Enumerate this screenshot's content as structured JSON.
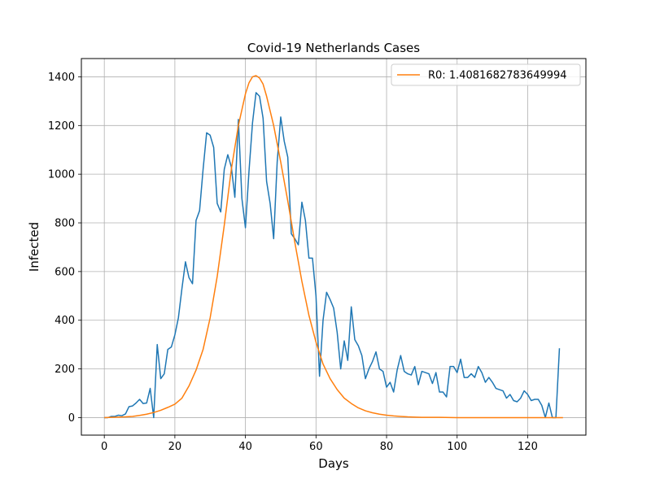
{
  "chart_data": {
    "type": "line",
    "title": "Covid-19 Netherlands Cases",
    "xlabel": "Days",
    "ylabel": "Infected",
    "xlim": [
      -6.5,
      136.5
    ],
    "ylim": [
      -72,
      1475
    ],
    "xticks": [
      0,
      20,
      40,
      60,
      80,
      100,
      120
    ],
    "yticks": [
      0,
      200,
      400,
      600,
      800,
      1000,
      1200,
      1400
    ],
    "grid": true,
    "legend_position": "top-right",
    "series": [
      {
        "name": "",
        "color": "#1f77b4",
        "x": [
          0,
          1,
          2,
          3,
          4,
          5,
          6,
          7,
          8,
          9,
          10,
          11,
          12,
          13,
          14,
          15,
          16,
          17,
          18,
          19,
          20,
          21,
          22,
          23,
          24,
          25,
          26,
          27,
          28,
          29,
          30,
          31,
          32,
          33,
          34,
          35,
          36,
          37,
          38,
          39,
          40,
          41,
          42,
          43,
          44,
          45,
          46,
          47,
          48,
          49,
          50,
          51,
          52,
          53,
          54,
          55,
          56,
          57,
          58,
          59,
          60,
          61,
          62,
          63,
          64,
          65,
          66,
          67,
          68,
          69,
          70,
          71,
          72,
          73,
          74,
          75,
          76,
          77,
          78,
          79,
          80,
          81,
          82,
          83,
          84,
          85,
          86,
          87,
          88,
          89,
          90,
          91,
          92,
          93,
          94,
          95,
          96,
          97,
          98,
          99,
          100,
          101,
          102,
          103,
          104,
          105,
          106,
          107,
          108,
          109,
          110,
          111,
          112,
          113,
          114,
          115,
          116,
          117,
          118,
          119,
          120,
          121,
          122,
          123,
          124,
          125,
          126,
          127,
          128,
          129
        ],
        "y": [
          0,
          0,
          5,
          5,
          10,
          8,
          15,
          45,
          48,
          60,
          75,
          58,
          60,
          120,
          0,
          300,
          160,
          180,
          280,
          290,
          340,
          410,
          530,
          640,
          575,
          550,
          810,
          850,
          1020,
          1170,
          1160,
          1110,
          880,
          845,
          1020,
          1080,
          1030,
          905,
          1225,
          900,
          780,
          1010,
          1210,
          1335,
          1320,
          1230,
          970,
          880,
          735,
          1050,
          1235,
          1135,
          1070,
          755,
          735,
          710,
          885,
          810,
          655,
          655,
          500,
          170,
          400,
          515,
          485,
          450,
          350,
          200,
          315,
          235,
          455,
          320,
          295,
          255,
          160,
          200,
          230,
          270,
          200,
          190,
          125,
          145,
          105,
          195,
          255,
          190,
          180,
          175,
          210,
          135,
          190,
          185,
          180,
          140,
          185,
          105,
          105,
          85,
          210,
          210,
          185,
          240,
          165,
          165,
          180,
          165,
          210,
          185,
          145,
          165,
          145,
          120,
          115,
          110,
          80,
          95,
          70,
          65,
          80,
          110,
          95,
          70,
          75,
          75,
          50,
          0,
          60,
          0,
          0,
          285
        ]
      },
      {
        "name": "R0: 1.4081682783649994",
        "color": "#ff7f0e",
        "x": [
          0,
          2,
          4,
          6,
          8,
          10,
          12,
          14,
          16,
          18,
          20,
          22,
          24,
          26,
          28,
          30,
          32,
          34,
          36,
          38,
          40,
          41,
          42,
          43,
          44,
          45,
          46,
          48,
          50,
          52,
          54,
          56,
          58,
          60,
          62,
          64,
          66,
          68,
          70,
          72,
          74,
          76,
          78,
          80,
          82,
          84,
          86,
          88,
          90,
          95,
          100,
          105,
          110,
          115,
          120,
          125,
          130
        ],
        "y": [
          0,
          1,
          2,
          3,
          5,
          9,
          14,
          21,
          30,
          42,
          55,
          80,
          130,
          195,
          280,
          410,
          580,
          790,
          1020,
          1200,
          1330,
          1375,
          1400,
          1405,
          1395,
          1370,
          1320,
          1200,
          1050,
          890,
          720,
          560,
          420,
          310,
          220,
          160,
          115,
          80,
          58,
          40,
          28,
          20,
          14,
          10,
          7,
          5,
          3,
          2,
          1,
          1,
          0,
          0,
          0,
          0,
          0,
          0,
          0
        ]
      }
    ]
  }
}
